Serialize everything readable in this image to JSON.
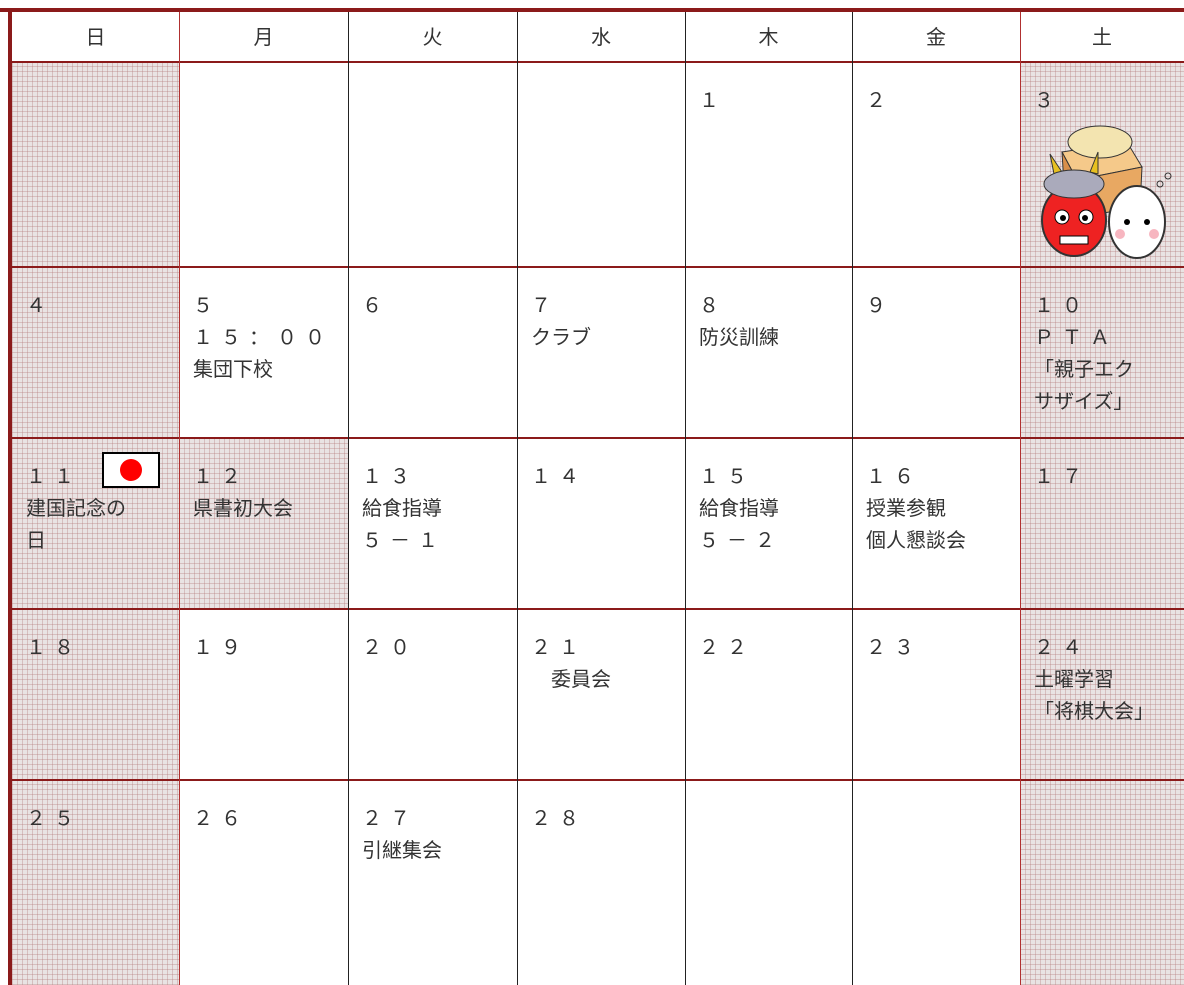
{
  "header": {
    "days": [
      "日",
      "月",
      "火",
      "水",
      "木",
      "金",
      "土"
    ]
  },
  "shaded_columns": [
    0,
    6
  ],
  "weeks": [
    [
      null,
      null,
      null,
      null,
      {
        "date": "１"
      },
      {
        "date": "２"
      },
      {
        "date": "３"
      }
    ],
    [
      {
        "date": "４"
      },
      {
        "date": "５",
        "lines": [
          "１５：００",
          "集団下校"
        ]
      },
      {
        "date": "６"
      },
      {
        "date": "７",
        "lines": [
          "クラブ"
        ]
      },
      {
        "date": "８",
        "lines": [
          "防災訓練"
        ]
      },
      {
        "date": "９"
      },
      {
        "date": "１０",
        "lines": [
          "ＰＴＡ",
          "「親子エク",
          "サザイズ」"
        ]
      }
    ],
    [
      {
        "date": "１１",
        "lines": [
          "建国記念の",
          "日"
        ]
      },
      {
        "date": "１２",
        "lines": [
          "県書初大会"
        ],
        "shaded": true
      },
      {
        "date": "１３",
        "lines": [
          "給食指導",
          "５－１"
        ]
      },
      {
        "date": "１４"
      },
      {
        "date": "１５",
        "lines": [
          "給食指導",
          "５－２"
        ]
      },
      {
        "date": "１６",
        "lines": [
          "授業参観",
          "個人懇談会"
        ]
      },
      {
        "date": "１７"
      }
    ],
    [
      {
        "date": "１８"
      },
      {
        "date": "１９"
      },
      {
        "date": "２０"
      },
      {
        "date": "２１",
        "lines": [
          "委員会"
        ]
      },
      {
        "date": "２２"
      },
      {
        "date": "２３"
      },
      {
        "date": "２４",
        "lines": [
          "土曜学習",
          "「将棋大会」"
        ]
      }
    ],
    [
      {
        "date": "２５"
      },
      {
        "date": "２６"
      },
      {
        "date": "２７",
        "lines": [
          "引継集会"
        ]
      },
      {
        "date": "２８"
      },
      null,
      null,
      null
    ]
  ]
}
